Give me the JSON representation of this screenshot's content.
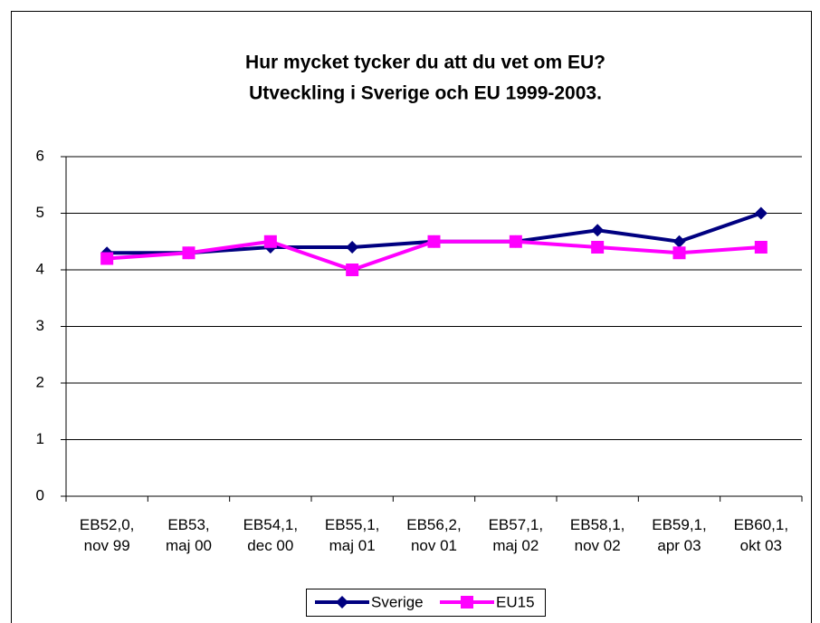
{
  "chart_data": {
    "type": "line",
    "title": [
      "Hur mycket tycker du att du vet om EU?",
      "Utveckling i Sverige och EU 1999-2003."
    ],
    "categories": [
      "EB52,0, nov 99",
      "EB53, maj 00",
      "EB54,1, dec 00",
      "EB55,1, maj 01",
      "EB56,2, nov 01",
      "EB57,1, maj 02",
      "EB58,1, nov 02",
      "EB59,1, apr 03",
      "EB60,1, okt 03"
    ],
    "series": [
      {
        "name": "Sverige",
        "color": "#000080",
        "marker": "diamond",
        "values": [
          4.3,
          4.3,
          4.4,
          4.4,
          4.5,
          4.5,
          4.7,
          4.5,
          5.0
        ]
      },
      {
        "name": "EU15",
        "color": "#ff00ff",
        "marker": "square",
        "values": [
          4.2,
          4.3,
          4.5,
          4.0,
          4.5,
          4.5,
          4.4,
          4.3,
          4.4
        ]
      }
    ],
    "ylim": [
      0,
      6
    ],
    "yticks": [
      0,
      1,
      2,
      3,
      4,
      5,
      6
    ],
    "grid": true,
    "legend": "bottom"
  }
}
